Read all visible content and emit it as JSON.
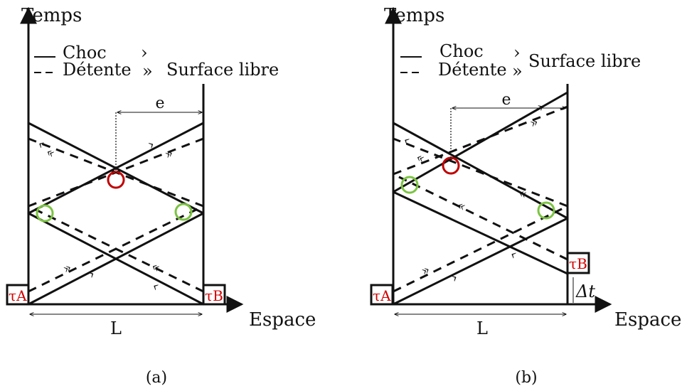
{
  "colors": {
    "ink": "#111111",
    "label_red": "#d40000",
    "intersection_red": "#c00000",
    "intersection_green": "#7cc443"
  },
  "panels": [
    {
      "id": "a",
      "caption": "(a)",
      "y_axis_label": "Temps",
      "x_axis_label": "Espace",
      "legend_solid_label": "Choc",
      "legend_solid_marker": "›",
      "legend_dashed_label": "Détente",
      "legend_dashed_marker": "»",
      "free_surface_label": "Surface libre",
      "thickness_label": "e",
      "length_label": "L",
      "left_time_label": "τA",
      "right_time_label": "τB",
      "delay_label": ""
    },
    {
      "id": "b",
      "caption": "(b)",
      "y_axis_label": "Temps",
      "x_axis_label": "Espace",
      "legend_solid_label": "Choc",
      "legend_solid_marker": "›",
      "legend_dashed_label": "Détente",
      "legend_dashed_marker": "»",
      "free_surface_label": "Surface libre",
      "thickness_label": "e",
      "length_label": "L",
      "left_time_label": "τA",
      "right_time_label": "τB",
      "delay_label": "Δt"
    }
  ]
}
